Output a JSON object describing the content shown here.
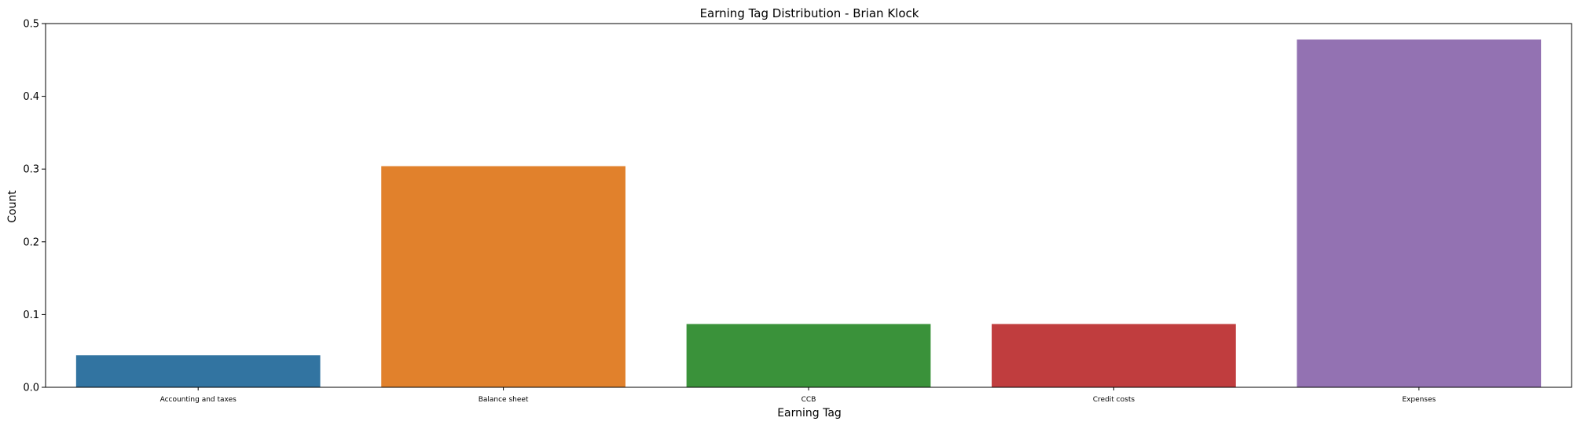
{
  "chart_data": {
    "type": "bar",
    "title": "Earning Tag Distribution - Brian Klock",
    "xlabel": "Earning Tag",
    "ylabel": "Count",
    "categories": [
      "Accounting and taxes",
      "Balance sheet",
      "CCB",
      "Credit costs",
      "Expenses"
    ],
    "values": [
      0.044,
      0.304,
      0.087,
      0.087,
      0.478
    ],
    "colors": [
      "#3274a1",
      "#e1812c",
      "#3a923a",
      "#c03d3e",
      "#9372b2"
    ],
    "ylim": [
      0,
      0.5
    ],
    "yticks": [
      "0.0",
      "0.1",
      "0.2",
      "0.3",
      "0.4",
      "0.5"
    ],
    "grid": false,
    "legend": "none"
  }
}
